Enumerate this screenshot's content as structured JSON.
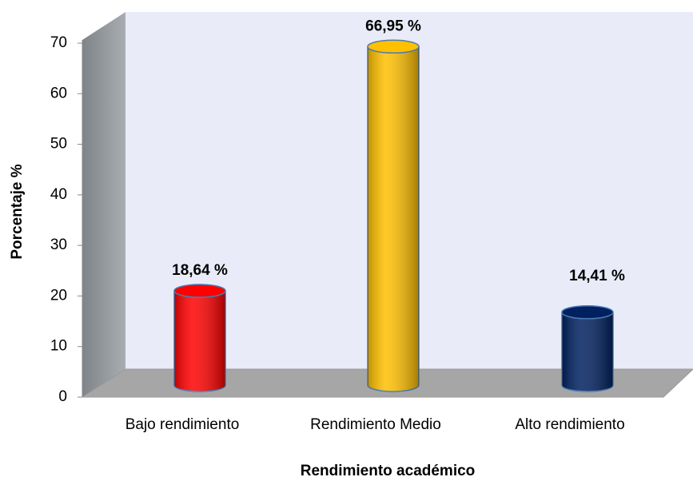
{
  "chart_data": {
    "type": "bar",
    "x_label": "Rendimiento académico",
    "y_label": "Porcentaje %",
    "categories": [
      "Bajo rendimiento",
      "Rendimiento Medio",
      "Alto rendimiento"
    ],
    "values": [
      18.64,
      66.95,
      14.41
    ],
    "value_labels": [
      "18,64 %",
      "66,95 %",
      "14,41 %"
    ],
    "colors": [
      "#ff0000",
      "#ffc000",
      "#002060"
    ],
    "ylim": [
      0,
      70
    ],
    "yticks": [
      0,
      10,
      20,
      30,
      40,
      50,
      60,
      70
    ]
  }
}
